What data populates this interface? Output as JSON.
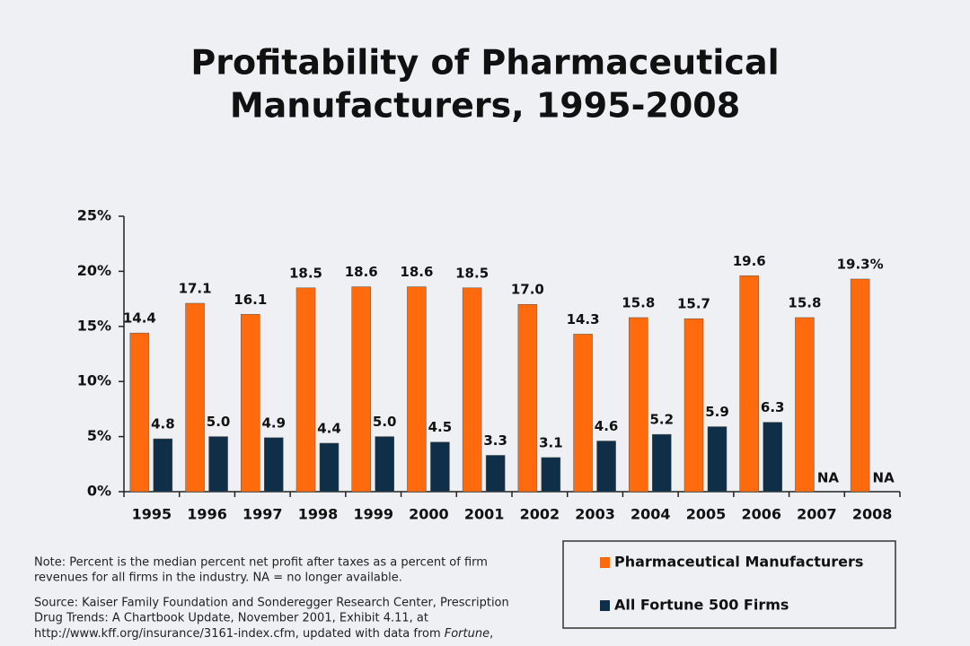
{
  "chart_data": {
    "type": "bar",
    "title": [
      "Profitability of Pharmaceutical",
      "Manufacturers, 1995-2008"
    ],
    "categories": [
      "1995",
      "1996",
      "1997",
      "1998",
      "1999",
      "2000",
      "2001",
      "2002",
      "2003",
      "2004",
      "2005",
      "2006",
      "2007",
      "2008"
    ],
    "series": [
      {
        "name": "Pharmaceutical Manufacturers",
        "color": "#ff6a0d",
        "values": [
          14.4,
          17.1,
          16.1,
          18.5,
          18.6,
          18.6,
          18.5,
          17.0,
          14.3,
          15.8,
          15.7,
          19.6,
          15.8,
          19.3
        ],
        "value_labels": [
          "14.4",
          "17.1",
          "16.1",
          "18.5",
          "18.6",
          "18.6",
          "18.5",
          "17.0",
          "14.3",
          "15.8",
          "15.7",
          "19.6",
          "15.8",
          "19.3%"
        ]
      },
      {
        "name": "All Fortune 500 Firms",
        "color": "#0f2f48",
        "values": [
          4.8,
          5.0,
          4.9,
          4.4,
          5.0,
          4.5,
          3.3,
          3.1,
          4.6,
          5.2,
          5.9,
          6.3,
          null,
          null
        ],
        "value_labels": [
          "4.8",
          "5.0",
          "4.9",
          "4.4",
          "5.0",
          "4.5",
          "3.3",
          "3.1",
          "4.6",
          "5.2",
          "5.9",
          "6.3",
          "NA",
          "NA"
        ]
      }
    ],
    "ylim": [
      0,
      25
    ],
    "yticks": [
      {
        "value": 0,
        "label": "0%"
      },
      {
        "value": 5,
        "label": "5%"
      },
      {
        "value": 10,
        "label": "10%"
      },
      {
        "value": 15,
        "label": "15%"
      },
      {
        "value": 20,
        "label": "20%"
      },
      {
        "value": 25,
        "label": "25%"
      }
    ],
    "grid": false,
    "note": [
      "Note: Percent is the median percent net profit after taxes as a percent of firm",
      "revenues for all firms in the industry.  NA = no longer available."
    ],
    "source": [
      "Source: Kaiser Family Foundation and Sonderegger Research Center, Prescription",
      "Drug Trends: A Chartbook Update, November 2001, Exhibit 4.11, at",
      [
        "http://www.kff.org/insurance/3161-index.cfm, updated with data from ",
        "Fortune",
        ","
      ]
    ]
  }
}
